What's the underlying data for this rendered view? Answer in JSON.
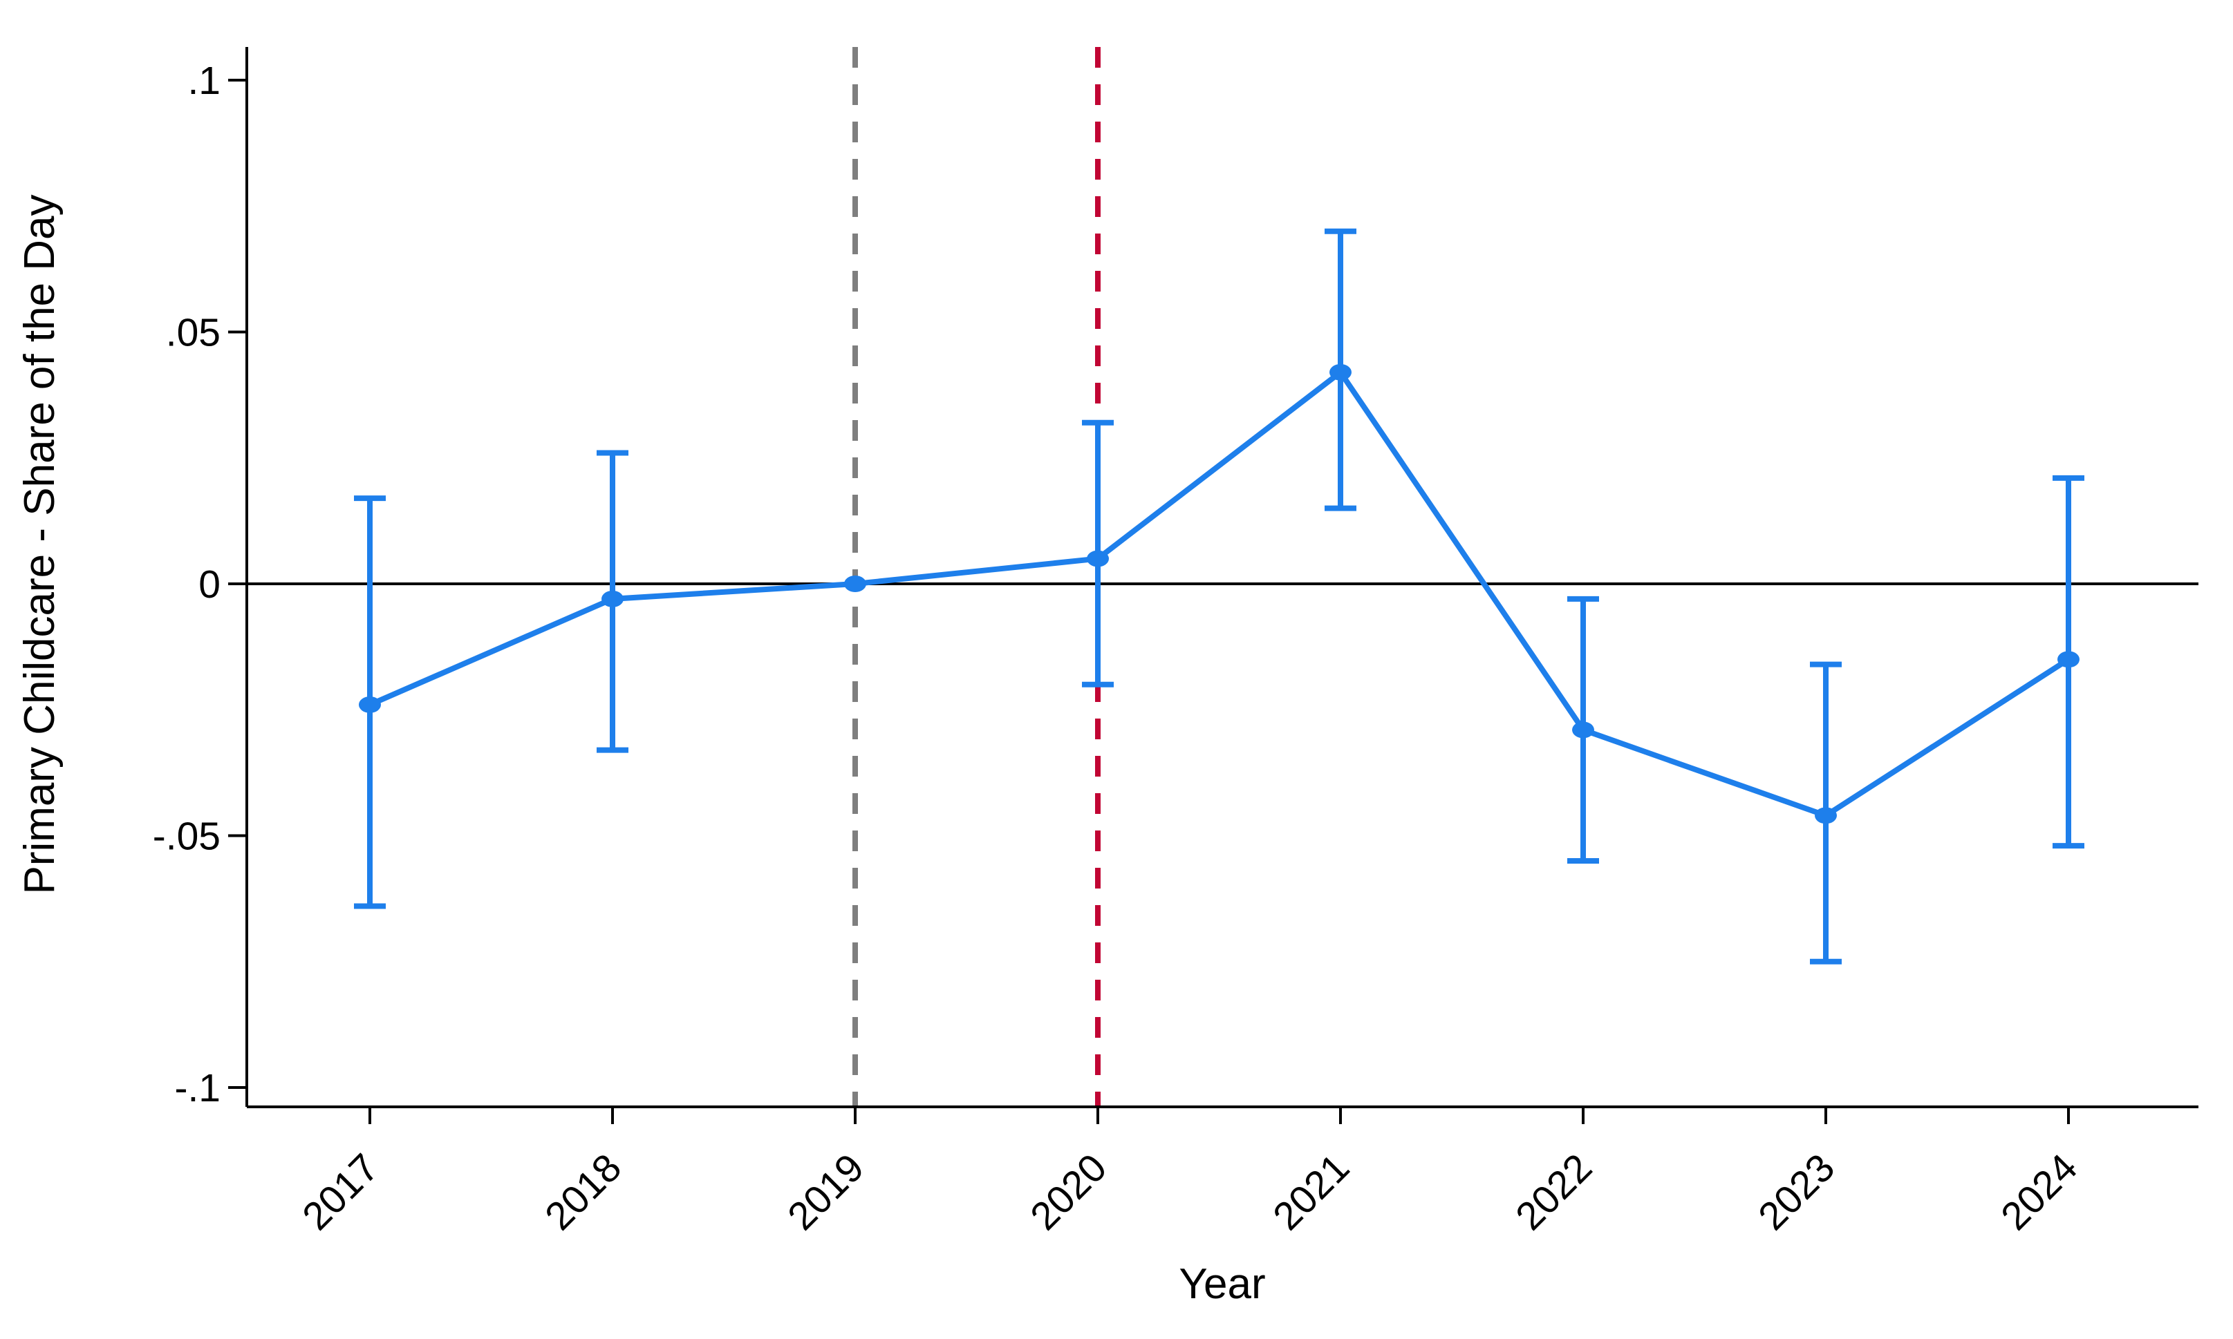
{
  "figure": {
    "background": "#FFFFFF",
    "x_axis_title": "Year",
    "y_axis_title": "Primary Childcare - Share of the Day"
  },
  "colors": {
    "series_blue": "#1E7FEB",
    "refline_pre_gray": "#7F7F7F",
    "refline_treat_red": "#C10534",
    "zero_line_black": "#000000",
    "axis_black": "#000000"
  },
  "chart_data": {
    "type": "line",
    "subtype": "event-study-coefficient-plot-with-95ci-error-bars",
    "title": "",
    "xlabel": "Year",
    "ylabel": "Primary Childcare - Share of the Day",
    "categories": [
      "2017",
      "2018",
      "2019",
      "2020",
      "2021",
      "2022",
      "2023",
      "2024"
    ],
    "y_ticks": [
      0.1,
      0.05,
      0,
      -0.05,
      -0.1
    ],
    "y_tick_labels": [
      ".1",
      ".05",
      "0",
      "-.05",
      "-.1"
    ],
    "ylim": [
      -0.104,
      0.107
    ],
    "grid": false,
    "legend": "none",
    "x_tick_label_angle_deg": 45,
    "series": [
      {
        "name": "coefficient-estimate",
        "color": "#1E7FEB",
        "marker": "circle",
        "estimates": [
          -0.024,
          -0.003,
          0,
          0.005,
          0.042,
          -0.029,
          -0.046,
          -0.015
        ],
        "ci_low": [
          -0.064,
          -0.033,
          0,
          -0.02,
          0.015,
          -0.055,
          -0.075,
          -0.052
        ],
        "ci_high": [
          0.017,
          0.026,
          0,
          0.032,
          0.07,
          -0.003,
          -0.016,
          0.021
        ],
        "ci_shown": [
          true,
          true,
          false,
          true,
          true,
          true,
          true,
          true
        ],
        "reference_category": "2019"
      }
    ],
    "reference_lines": {
      "horizontal": [
        {
          "value": 0,
          "color": "#000000",
          "style": "solid"
        }
      ],
      "vertical": [
        {
          "at_category": "2019",
          "color": "#7F7F7F",
          "style": "dashed"
        },
        {
          "at_category": "2020",
          "color": "#C10534",
          "style": "dashed"
        }
      ]
    }
  }
}
